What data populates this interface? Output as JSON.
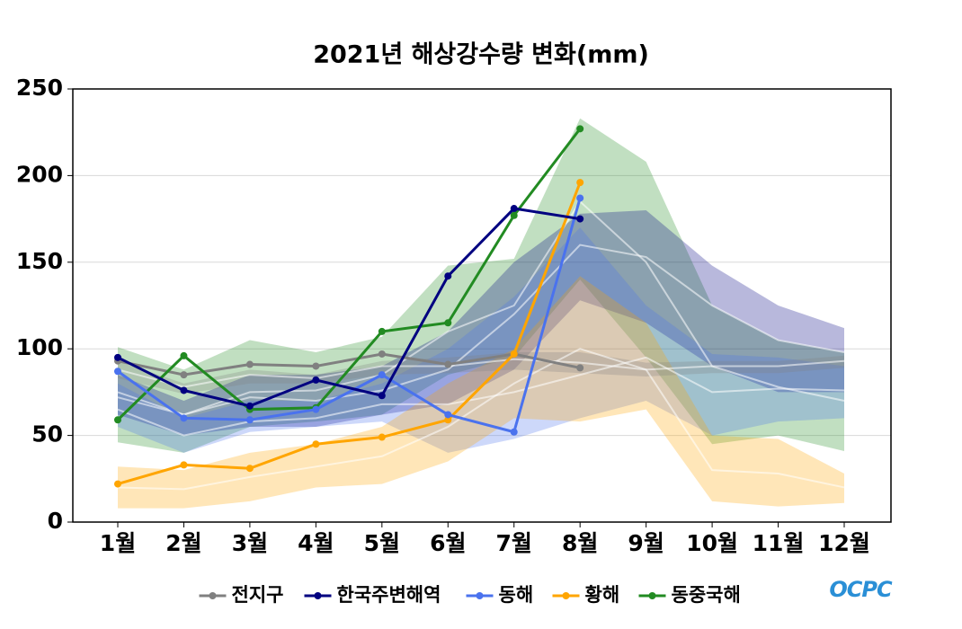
{
  "chart_data": {
    "type": "line",
    "title": "2021년 해상강수량 변화(mm)",
    "categories": [
      "1월",
      "2월",
      "3월",
      "4월",
      "5월",
      "6월",
      "7월",
      "8월",
      "9월",
      "10월",
      "11월",
      "12월"
    ],
    "ylim": [
      0,
      250
    ],
    "yticks": [
      0,
      50,
      100,
      150,
      200,
      250
    ],
    "grid": true,
    "legend": "bottom",
    "logo": "OCPC",
    "series": [
      {
        "name": "전지구",
        "color": "#808080",
        "values": [
          93,
          85,
          91,
          90,
          97,
          91,
          97,
          89,
          null,
          null,
          null,
          null
        ],
        "range_high": [
          93,
          80,
          88,
          85,
          93,
          95,
          98,
          98,
          92,
          93,
          93,
          96
        ],
        "range_low": [
          83,
          74,
          80,
          80,
          85,
          86,
          88,
          86,
          84,
          86,
          86,
          89
        ],
        "mean": [
          88,
          78,
          85,
          83,
          90,
          90,
          94,
          92,
          88,
          90,
          90,
          93
        ]
      },
      {
        "name": "한국주변해역",
        "color": "#000080",
        "values": [
          95,
          76,
          67,
          82,
          73,
          142,
          181,
          175,
          null,
          null,
          null,
          null
        ],
        "range_high": [
          85,
          70,
          85,
          85,
          90,
          110,
          150,
          178,
          180,
          148,
          125,
          112
        ],
        "range_low": [
          62,
          50,
          55,
          55,
          62,
          68,
          88,
          128,
          115,
          90,
          75,
          75
        ],
        "mean": [
          75,
          62,
          72,
          70,
          76,
          88,
          120,
          160,
          153,
          125,
          105,
          98
        ]
      },
      {
        "name": "동해",
        "color": "#4a72ee",
        "values": [
          87,
          60,
          59,
          65,
          85,
          62,
          52,
          187,
          null,
          null,
          null,
          null
        ],
        "range_high": [
          80,
          60,
          70,
          70,
          80,
          100,
          130,
          170,
          125,
          97,
          95,
          90
        ],
        "range_low": [
          55,
          40,
          52,
          55,
          58,
          40,
          48,
          60,
          70,
          50,
          58,
          60
        ],
        "mean": [
          65,
          50,
          58,
          60,
          68,
          68,
          75,
          85,
          95,
          75,
          77,
          76
        ]
      },
      {
        "name": "황해",
        "color": "#ffa500",
        "values": [
          22,
          33,
          31,
          45,
          49,
          59,
          97,
          196,
          null,
          null,
          null,
          null
        ],
        "range_high": [
          32,
          30,
          40,
          45,
          55,
          80,
          100,
          142,
          115,
          50,
          48,
          28
        ],
        "range_low": [
          8,
          8,
          12,
          20,
          22,
          35,
          60,
          58,
          65,
          12,
          9,
          11
        ],
        "mean": [
          20,
          19,
          26,
          32,
          38,
          55,
          80,
          100,
          88,
          30,
          28,
          20
        ]
      },
      {
        "name": "동중국해",
        "color": "#228b22",
        "values": [
          59,
          96,
          65,
          66,
          110,
          115,
          177,
          227,
          null,
          null,
          null,
          null
        ],
        "range_high": [
          101,
          88,
          105,
          98,
          107,
          148,
          152,
          233,
          208,
          125,
          105,
          98
        ],
        "range_low": [
          46,
          40,
          55,
          58,
          62,
          85,
          95,
          140,
          95,
          45,
          50,
          41
        ],
        "mean": [
          72,
          62,
          75,
          76,
          85,
          110,
          125,
          185,
          150,
          90,
          78,
          70
        ]
      }
    ]
  }
}
